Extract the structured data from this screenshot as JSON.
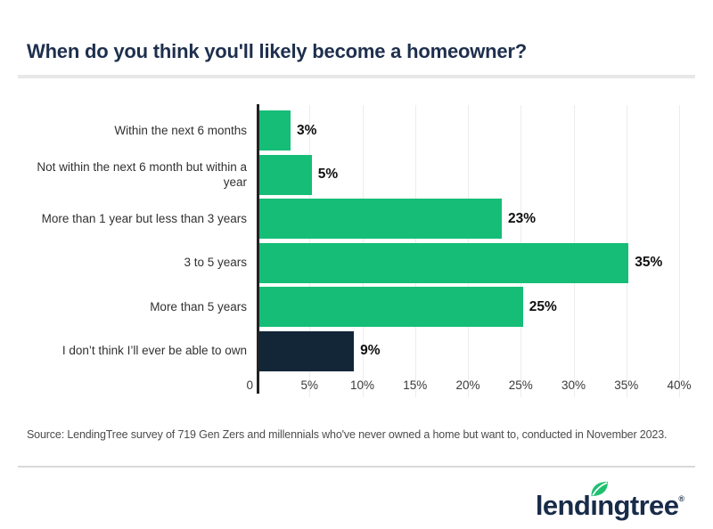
{
  "header": {
    "title": "When do you think you'll likely become a homeowner?"
  },
  "chart_data": {
    "type": "bar",
    "orientation": "horizontal",
    "title": "When do you think you'll likely become a homeowner?",
    "categories": [
      "Within the next 6 months",
      "Not within the next 6 month but within a year",
      "More than 1 year but less than 3 years",
      "3 to 5 years",
      "More than 5 years",
      "I don’t think I’ll ever be able to own"
    ],
    "values": [
      3,
      5,
      23,
      35,
      25,
      9
    ],
    "value_labels": [
      "3%",
      "5%",
      "23%",
      "35%",
      "25%",
      "9%"
    ],
    "bar_colors": [
      "#16BD77",
      "#16BD77",
      "#16BD77",
      "#16BD77",
      "#16BD77",
      "#132638"
    ],
    "xlim": [
      0,
      40
    ],
    "x_ticks": [
      {
        "label": "0",
        "value": 0
      },
      {
        "label": "5%",
        "value": 5
      },
      {
        "label": "10%",
        "value": 10
      },
      {
        "label": "15%",
        "value": 15
      },
      {
        "label": "20%",
        "value": 20
      },
      {
        "label": "25%",
        "value": 25
      },
      {
        "label": "30%",
        "value": 30
      },
      {
        "label": "35%",
        "value": 35
      },
      {
        "label": "40%",
        "value": 40
      }
    ],
    "grid": "vertical-light",
    "legend": "none",
    "xlabel": "",
    "ylabel": ""
  },
  "footer": {
    "source": "Source: LendingTree survey of 719 Gen Zers and millennials who've never owned a home but want to, conducted in November 2023.",
    "logo_part1": "lend",
    "logo_part_i": "ı",
    "logo_part2": "ngtree",
    "logo_reg": "®"
  },
  "colors": {
    "accent_green": "#16BD77",
    "accent_navy": "#132638",
    "title_navy": "#1E2F4D",
    "logo_navy": "#182B49",
    "leaf_green": "#1FC06F",
    "gridline": "#ececec",
    "divider": "#e8e8e8"
  }
}
